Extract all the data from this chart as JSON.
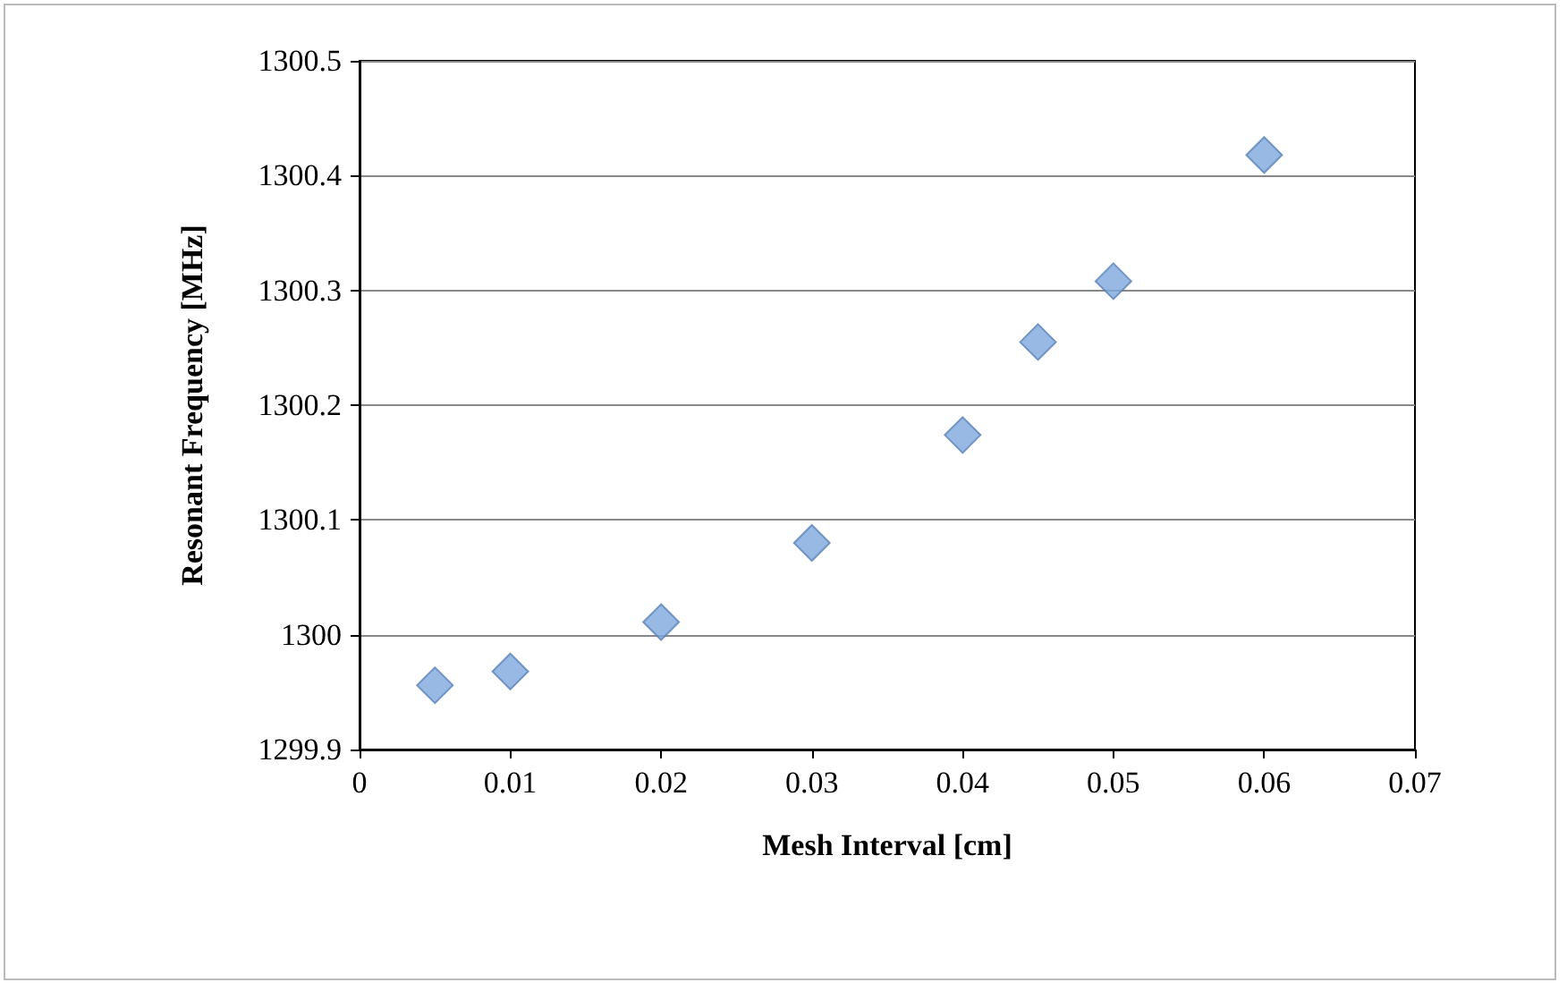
{
  "chart_data": {
    "type": "scatter",
    "xlabel": "Mesh Interval [cm]",
    "ylabel": "Resonant Frequency [MHz]",
    "x": [
      0.005,
      0.01,
      0.02,
      0.03,
      0.04,
      0.045,
      0.05,
      0.06
    ],
    "series": [
      {
        "color": "#7ea7dc",
        "values": [
          1299.956,
          1299.968,
          1300.011,
          1300.08,
          1300.174,
          1300.255,
          1300.308,
          1300.418
        ]
      }
    ],
    "xlim": [
      0,
      0.07
    ],
    "xticks": [
      0,
      0.01,
      0.02,
      0.03,
      0.04,
      0.05,
      0.06,
      0.07
    ],
    "ylim": [
      1299.9,
      1300.5
    ],
    "yticks": [
      1299.9,
      1300,
      1300.1,
      1300.2,
      1300.3,
      1300.4,
      1300.5
    ],
    "grid": "y",
    "marker": "diamond"
  }
}
